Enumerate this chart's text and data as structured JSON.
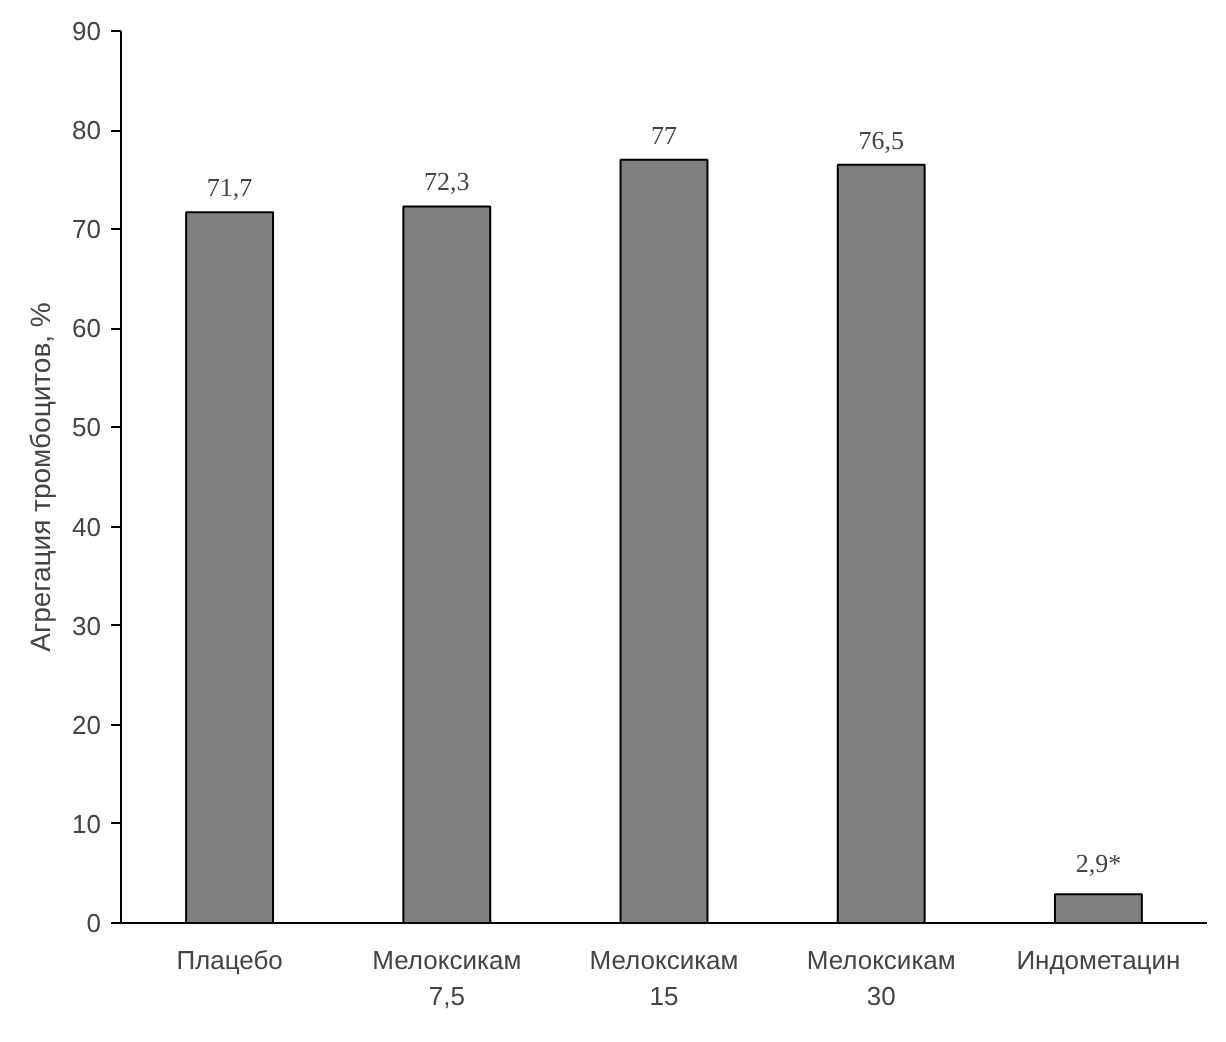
{
  "chart_data": {
    "type": "bar",
    "ylabel": "Агрегация тромбоцитов, %",
    "categories": [
      "Плацебо",
      "Мелоксикам\n7,5",
      "Мелоксикам\n15",
      "Мелоксикам\n30",
      "Индометацин"
    ],
    "values": [
      71.7,
      72.3,
      77,
      76.5,
      2.9
    ],
    "value_labels": [
      "71,7",
      "72,3",
      "77",
      "76,5",
      "2,9*"
    ],
    "color": "#808080",
    "ylim": [
      0,
      90
    ],
    "yticks": [
      0,
      10,
      20,
      30,
      40,
      50,
      60,
      70,
      80,
      90
    ],
    "grid": false
  }
}
